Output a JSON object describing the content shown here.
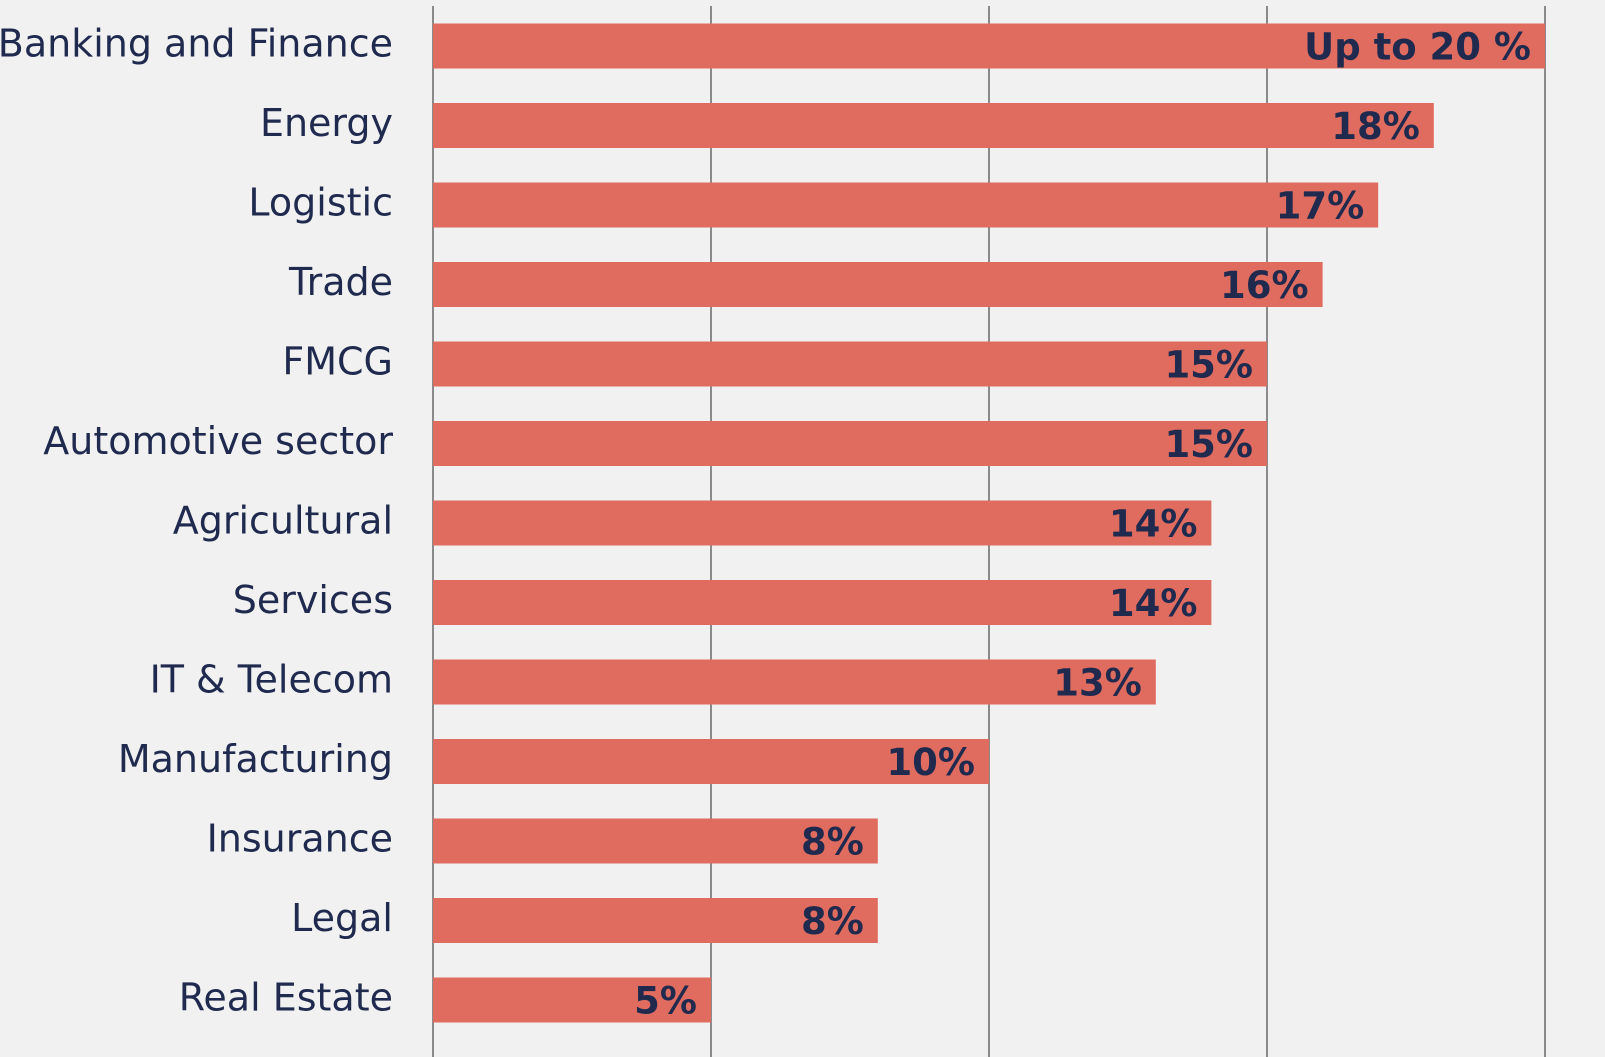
{
  "chart_data": {
    "type": "bar",
    "orientation": "horizontal",
    "categories": [
      "Banking and Finance",
      "Energy",
      "Logistic",
      "Trade",
      "FMCG",
      "Automotive sector",
      "Agricultural",
      "Services",
      "IT & Telecom",
      "Manufacturing",
      "Insurance",
      "Legal",
      "Real Estate"
    ],
    "values": [
      20,
      18,
      17,
      16,
      15,
      15,
      14,
      14,
      13,
      10,
      8,
      8,
      5
    ],
    "value_labels": [
      "Up to 20 %",
      "18%",
      "17%",
      "16%",
      "15%",
      "15%",
      "14%",
      "14%",
      "13%",
      "10%",
      "8%",
      "8%",
      "5%"
    ],
    "color": "#e06c5f",
    "xlim": [
      0,
      20
    ],
    "xticks": [
      0,
      5,
      10,
      15,
      20
    ],
    "grid": true
  }
}
